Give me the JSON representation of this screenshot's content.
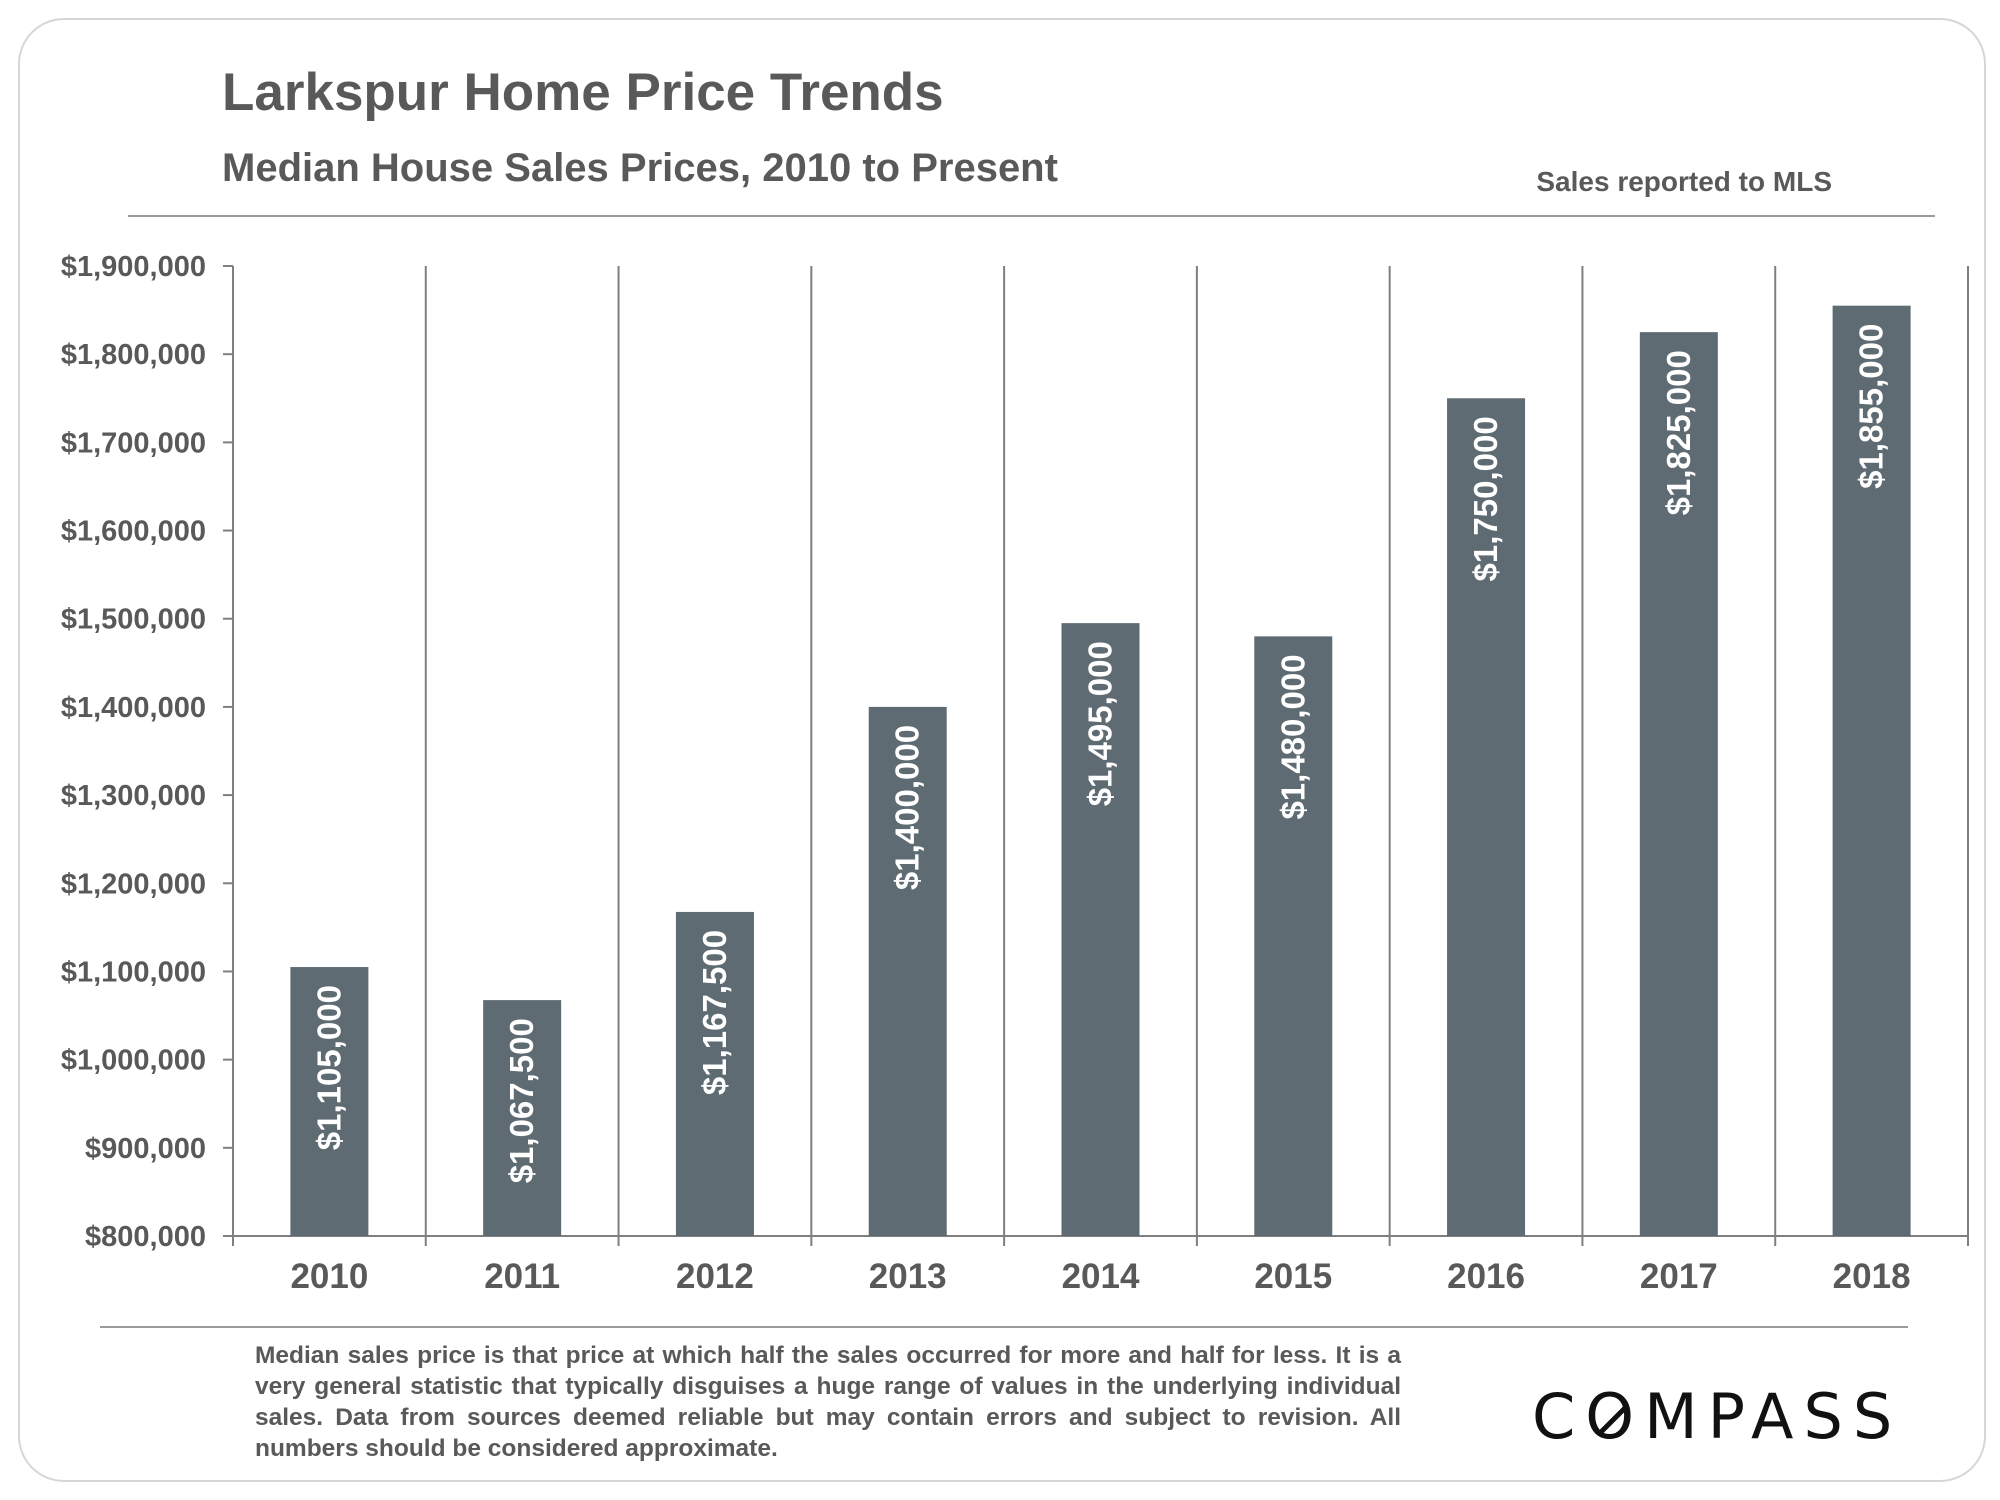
{
  "header": {
    "title": "Larkspur Home Price Trends",
    "subtitle": "Median House Sales Prices, 2010 to Present",
    "source_note": "Sales reported to MLS"
  },
  "chart_data": {
    "type": "bar",
    "title": "Larkspur Home Price Trends",
    "subtitle": "Median House Sales Prices, 2010 to Present",
    "xlabel": "",
    "ylabel": "",
    "categories": [
      "2010",
      "2011",
      "2012",
      "2013",
      "2014",
      "2015",
      "2016",
      "2017",
      "2018"
    ],
    "values": [
      1105000,
      1067500,
      1167500,
      1400000,
      1495000,
      1480000,
      1750000,
      1825000,
      1855000
    ],
    "data_labels": [
      "$1,105,000",
      "$1,067,500",
      "$1,167,500",
      "$1,400,000",
      "$1,495,000",
      "$1,480,000",
      "$1,750,000",
      "$1,825,000",
      "$1,855,000"
    ],
    "ylim": [
      800000,
      1900000
    ],
    "yticks": [
      800000,
      900000,
      1000000,
      1100000,
      1200000,
      1300000,
      1400000,
      1500000,
      1600000,
      1700000,
      1800000,
      1900000
    ],
    "ytick_labels": [
      "$800,000",
      "$900,000",
      "$1,000,000",
      "$1,100,000",
      "$1,200,000",
      "$1,300,000",
      "$1,400,000",
      "$1,500,000",
      "$1,600,000",
      "$1,700,000",
      "$1,800,000",
      "$1,900,000"
    ],
    "grid": "vertical category separators",
    "bar_color": "#5f6b73",
    "data_label_color": "#ffffff"
  },
  "footer": {
    "footnote": "Median sales price is that price at which half the sales occurred for more and half for less. It is a very general statistic that typically disguises a huge range of values in the underlying individual sales. Data from sources deemed reliable but may contain errors and subject to revision. All numbers should be considered approximate.",
    "logo_text": "COMPASS"
  }
}
